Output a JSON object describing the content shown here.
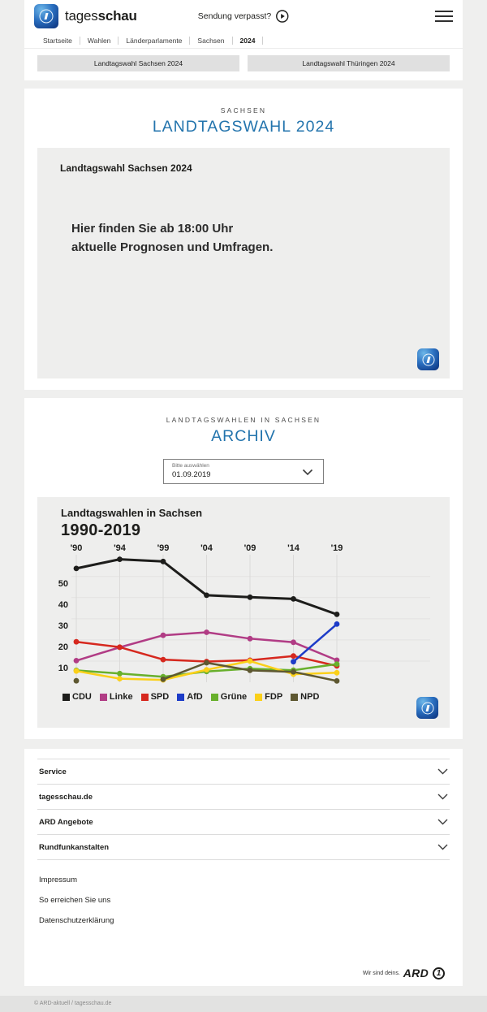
{
  "header": {
    "logo_text_light": "tages",
    "logo_text_bold": "schau",
    "broadcast_link": "Sendung verpasst?",
    "breadcrumb": [
      "Startseite",
      "Wahlen",
      "Länderparlamente",
      "Sachsen",
      "2024"
    ]
  },
  "tabs": [
    {
      "label": "Landtagswahl Sachsen 2024"
    },
    {
      "label": "Landtagswahl Thüringen 2024"
    }
  ],
  "election_section": {
    "kicker": "SACHSEN",
    "title": "LANDTAGSWAHL 2024",
    "card_title": "Landtagswahl Sachsen 2024",
    "card_message_line1": "Hier finden Sie ab 18:00 Uhr",
    "card_message_line2": "aktuelle Prognosen und Umfragen."
  },
  "archive_section": {
    "kicker": "LANDTAGSWAHLEN IN SACHSEN",
    "title": "ARCHIV",
    "select_label": "Bitte auswählen",
    "select_value": "01.09.2019"
  },
  "chart_data": {
    "type": "line",
    "title": "Landtagswahlen in Sachsen",
    "subtitle": "1990-2019",
    "categories": [
      1990,
      1994,
      1999,
      2004,
      2009,
      2014,
      2019
    ],
    "x_tick_labels": [
      "'90",
      "'94",
      "'99",
      "'04",
      "'09",
      "'14",
      "'19"
    ],
    "y_ticks": [
      10,
      20,
      30,
      40,
      50
    ],
    "ylim": [
      0,
      62
    ],
    "unit": "percent",
    "grid": true,
    "legend_position": "bottom",
    "series": [
      {
        "name": "CDU",
        "color": "#1d1d1b",
        "values": [
          53.8,
          58.1,
          57.1,
          41.1,
          40.2,
          39.4,
          32.1
        ]
      },
      {
        "name": "Linke",
        "color": "#b13c85",
        "values": [
          10.2,
          16.5,
          22.2,
          23.6,
          20.6,
          18.9,
          10.4
        ]
      },
      {
        "name": "SPD",
        "color": "#d6281e",
        "values": [
          19.1,
          16.6,
          10.7,
          9.8,
          10.4,
          12.4,
          7.7
        ]
      },
      {
        "name": "AfD",
        "color": "#1d3cc8",
        "values": [
          null,
          null,
          null,
          null,
          null,
          9.7,
          27.5
        ]
      },
      {
        "name": "Grüne",
        "color": "#68b02c",
        "values": [
          5.6,
          4.1,
          2.6,
          5.1,
          6.4,
          5.7,
          8.6
        ]
      },
      {
        "name": "FDP",
        "color": "#fbd019",
        "values": [
          5.3,
          1.7,
          1.1,
          5.9,
          10.0,
          3.8,
          4.5
        ]
      },
      {
        "name": "NPD",
        "color": "#5e5831",
        "values": [
          0.7,
          null,
          1.4,
          9.2,
          5.6,
          4.9,
          0.6
        ]
      }
    ]
  },
  "footer": {
    "accordions": [
      {
        "label": "Service"
      },
      {
        "label": "tagesschau.de"
      },
      {
        "label": "ARD Angebote"
      },
      {
        "label": "Rundfunkanstalten"
      }
    ],
    "links": [
      {
        "label": "Impressum"
      },
      {
        "label": "So erreichen Sie uns"
      },
      {
        "label": "Datenschutzerklärung"
      }
    ],
    "ard_claim": "Wir sind deins.",
    "ard_brand": "ARD",
    "ard_badge": "1",
    "copyright": "© ARD-aktuell / tagesschau.de"
  },
  "colors": {
    "accent_blue": "#2374ad",
    "page_background": "#efefee",
    "panel_gray": "#eeeeed",
    "button_gray": "#e0e0e0"
  },
  "icons": {
    "play": "play-circle",
    "menu": "hamburger",
    "chevron_down": "chevron-down"
  }
}
